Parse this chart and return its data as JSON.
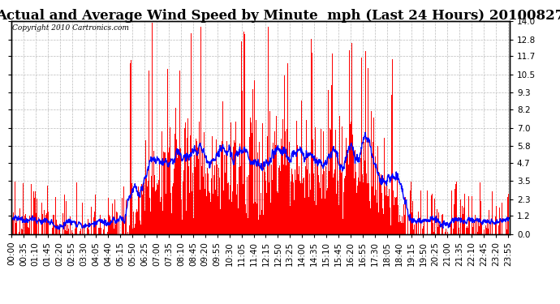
{
  "title": "Actual and Average Wind Speed by Minute  mph (Last 24 Hours) 20100827",
  "copyright": "Copyright 2010 Cartronics.com",
  "yticks": [
    0.0,
    1.2,
    2.3,
    3.5,
    4.7,
    5.8,
    7.0,
    8.2,
    9.3,
    10.5,
    11.7,
    12.8,
    14.0
  ],
  "ylim": [
    0.0,
    14.0
  ],
  "bar_color": "#FF0000",
  "line_color": "#0000FF",
  "background_color": "#FFFFFF",
  "grid_color": "#BBBBBB",
  "title_fontsize": 12,
  "copyright_fontsize": 6.5,
  "tick_label_fontsize": 7.5
}
